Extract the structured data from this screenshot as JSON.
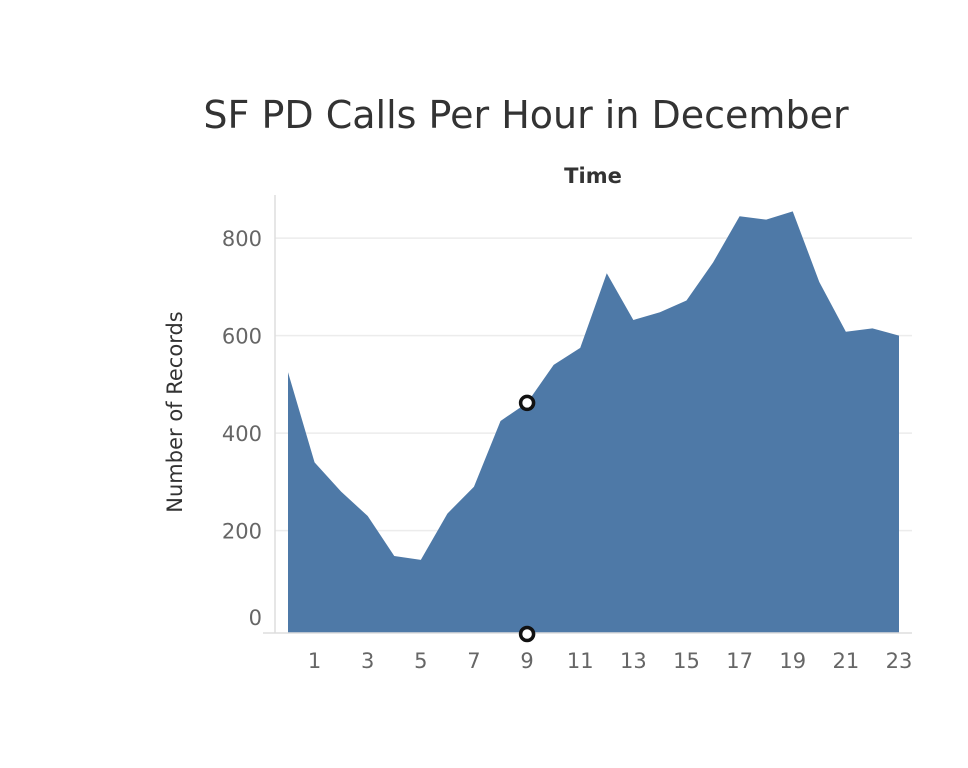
{
  "chart_data": {
    "type": "area",
    "title": "SF PD Calls Per Hour in December",
    "facet_label": "Time",
    "xlabel": "",
    "ylabel": "Number of Records",
    "x": [
      0,
      1,
      2,
      3,
      4,
      5,
      6,
      7,
      8,
      9,
      10,
      11,
      12,
      13,
      14,
      15,
      16,
      17,
      18,
      19,
      20,
      21,
      22,
      23
    ],
    "x_ticks": [
      1,
      3,
      5,
      7,
      9,
      11,
      13,
      15,
      17,
      19,
      21,
      23
    ],
    "y_ticks": [
      0,
      200,
      400,
      600,
      800
    ],
    "ylim": [
      -10,
      900
    ],
    "xlim": [
      -0.5,
      23.5
    ],
    "series": [
      {
        "values": [
          525,
          340,
          280,
          230,
          148,
          140,
          235,
          290,
          425,
          462,
          540,
          575,
          728,
          632,
          648,
          672,
          750,
          845,
          838,
          855,
          710,
          608,
          615,
          600
        ]
      }
    ],
    "marker": {
      "x": 9,
      "y": 462
    },
    "grid": true,
    "legend": "none"
  },
  "colors": {
    "area": "#4e79a7",
    "marker_stroke": "#111111",
    "marker_fill": "#ffffff"
  }
}
